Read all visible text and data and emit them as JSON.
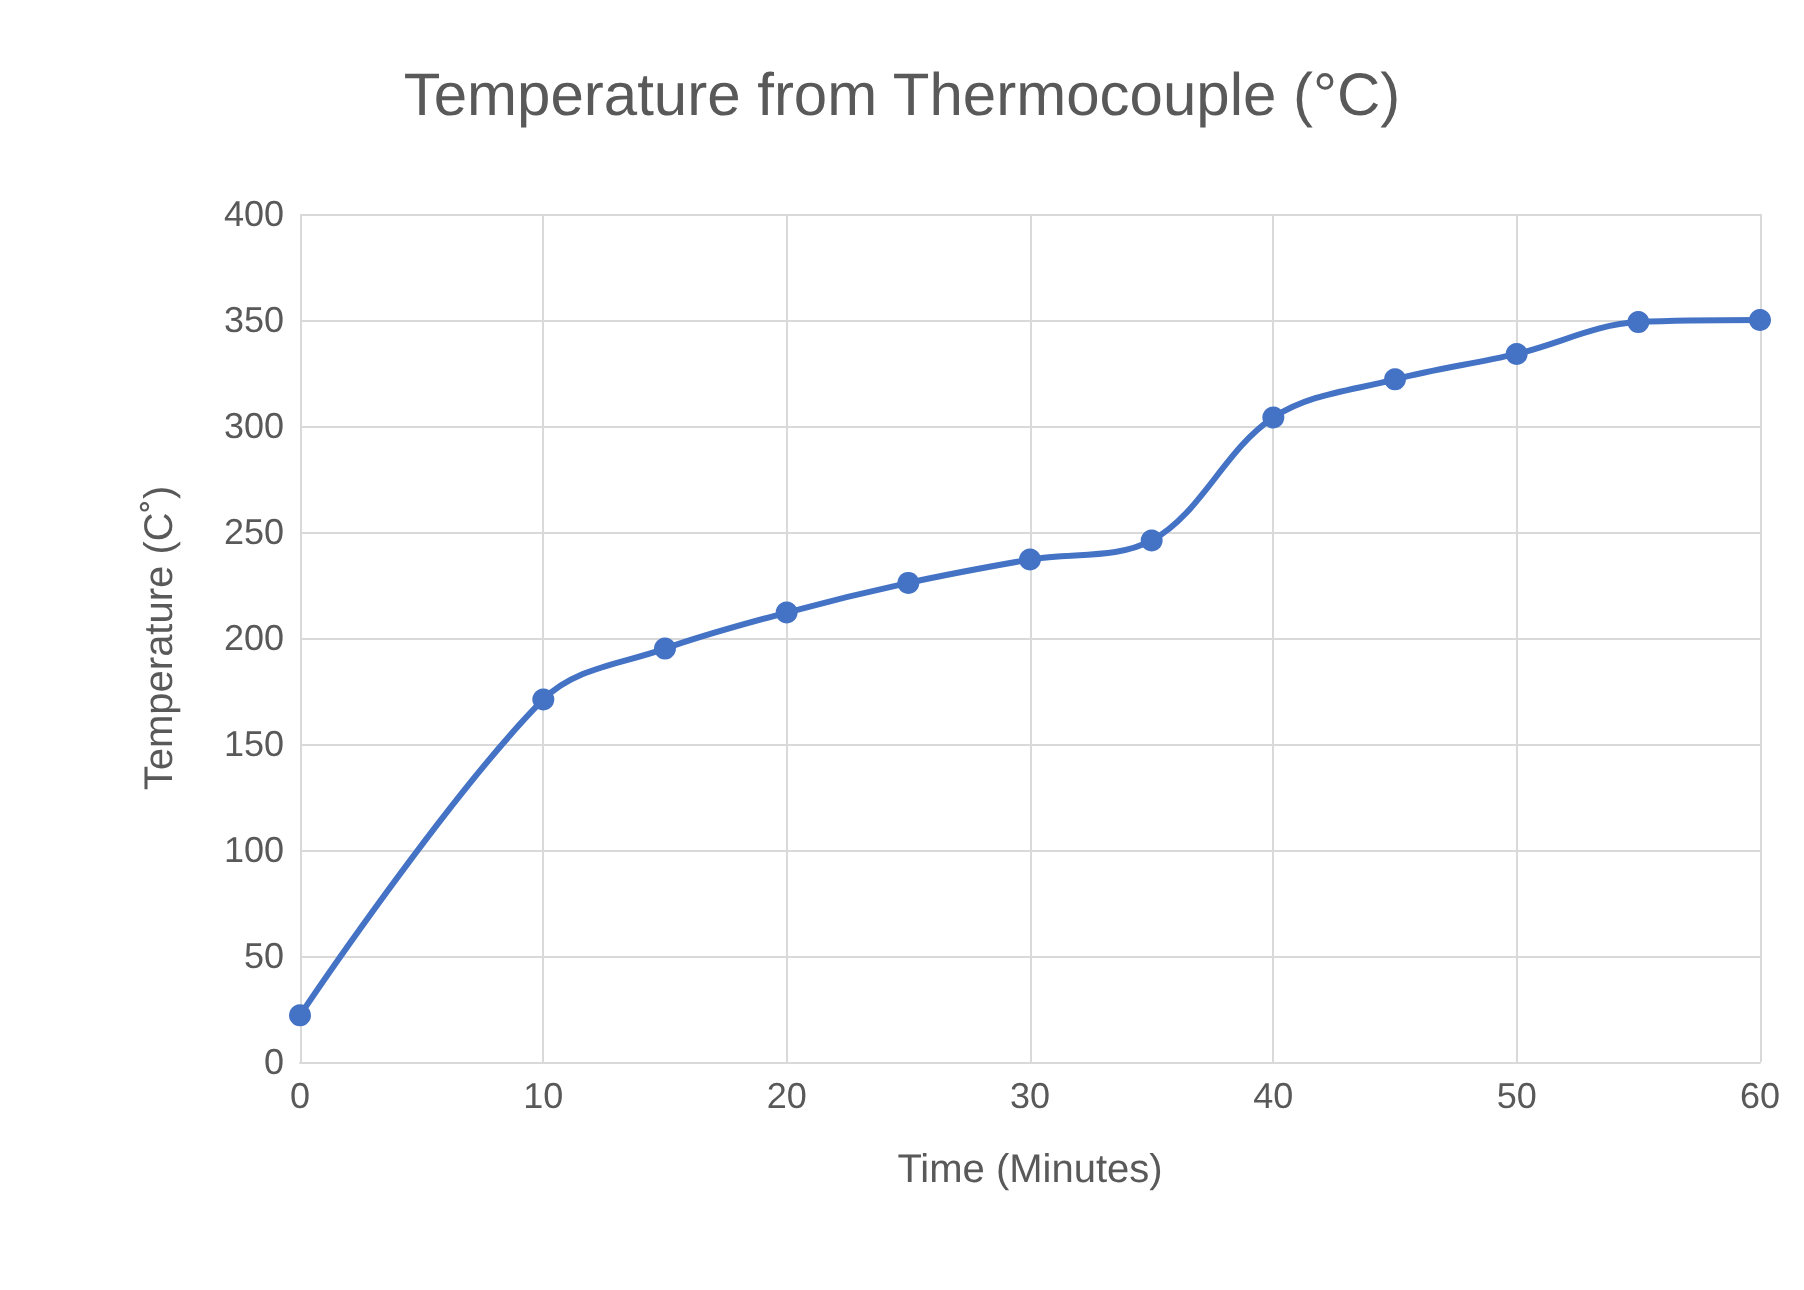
{
  "chart_data": {
    "type": "line",
    "title": "Temperature from Thermocouple (°C)",
    "xlabel": "Time (Minutes)",
    "ylabel": "Temperature (C˚)",
    "x": [
      0,
      10,
      15,
      20,
      25,
      30,
      35,
      40,
      45,
      50,
      55,
      60
    ],
    "series": [
      {
        "color": "#4472c4",
        "values": [
          22,
          171,
          195,
          212,
          226,
          237,
          246,
          304,
          322,
          334,
          349,
          350
        ]
      }
    ],
    "xlim": [
      0,
      60
    ],
    "xticks": [
      0,
      10,
      20,
      30,
      40,
      50,
      60
    ],
    "ylim": [
      0,
      400
    ],
    "yticks": [
      0,
      50,
      100,
      150,
      200,
      250,
      300,
      350,
      400
    ],
    "grid": true,
    "marker": "circle",
    "line_style": "solid"
  }
}
